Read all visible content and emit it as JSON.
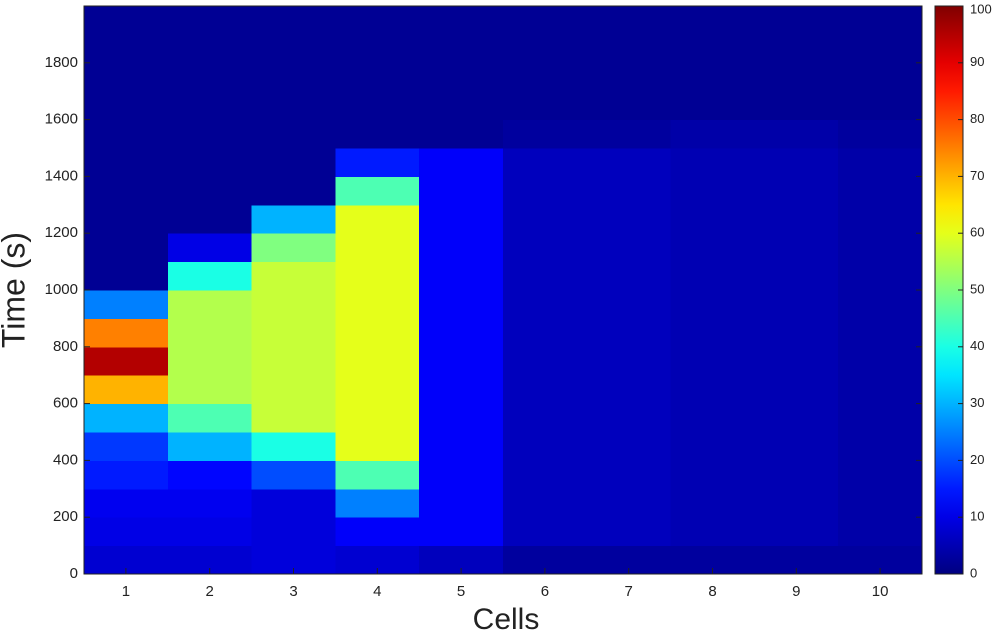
{
  "chart_data": {
    "type": "heatmap",
    "x_label": "Cells",
    "y_label": "Time (s)",
    "categories": [
      "1",
      "2",
      "3",
      "4",
      "5",
      "6",
      "7",
      "8",
      "9",
      "10"
    ],
    "y_bins": [
      0,
      100,
      200,
      300,
      400,
      500,
      600,
      700,
      800,
      900,
      1000,
      1100,
      1200,
      1300,
      1400,
      1500,
      1600,
      1700,
      1800,
      1900,
      2000
    ],
    "values": [
      [
        8,
        8,
        9,
        8,
        6,
        3,
        3,
        3,
        3,
        3
      ],
      [
        10,
        10,
        9,
        12,
        12,
        6,
        6,
        5,
        5,
        4
      ],
      [
        11,
        11,
        9,
        25,
        12,
        6,
        6,
        5,
        5,
        4
      ],
      [
        15,
        13,
        20,
        45,
        12,
        6,
        6,
        5,
        5,
        4
      ],
      [
        18,
        30,
        40,
        60,
        12,
        6,
        6,
        5,
        5,
        4
      ],
      [
        30,
        45,
        57,
        60,
        12,
        6,
        6,
        5,
        5,
        4
      ],
      [
        70,
        55,
        57,
        60,
        12,
        6,
        6,
        5,
        5,
        4
      ],
      [
        95,
        55,
        57,
        60,
        12,
        6,
        6,
        5,
        5,
        4
      ],
      [
        75,
        55,
        57,
        60,
        12,
        6,
        6,
        5,
        5,
        4
      ],
      [
        25,
        55,
        57,
        60,
        12,
        6,
        6,
        5,
        5,
        4
      ],
      [
        2,
        40,
        57,
        60,
        12,
        6,
        6,
        5,
        5,
        4
      ],
      [
        2,
        10,
        50,
        60,
        12,
        6,
        6,
        5,
        5,
        4
      ],
      [
        2,
        2,
        30,
        60,
        12,
        6,
        6,
        5,
        5,
        4
      ],
      [
        2,
        2,
        2,
        45,
        12,
        6,
        6,
        5,
        5,
        4
      ],
      [
        2,
        2,
        2,
        15,
        12,
        6,
        6,
        5,
        5,
        4
      ],
      [
        2,
        2,
        2,
        2,
        2,
        3,
        3,
        4,
        4,
        3
      ],
      [
        2,
        2,
        2,
        2,
        2,
        2,
        2,
        2,
        2,
        2
      ],
      [
        2,
        2,
        2,
        2,
        2,
        2,
        2,
        2,
        2,
        2
      ],
      [
        2,
        2,
        2,
        2,
        2,
        2,
        2,
        2,
        2,
        2
      ],
      [
        2,
        2,
        2,
        2,
        2,
        2,
        2,
        2,
        2,
        2
      ]
    ],
    "ylim": [
      0,
      2000
    ],
    "yticks": [
      0,
      200,
      400,
      600,
      800,
      1000,
      1200,
      1400,
      1600,
      1800
    ],
    "colormap": "jet",
    "colorbar": {
      "lim": [
        0,
        100
      ],
      "ticks": [
        0,
        10,
        20,
        30,
        40,
        50,
        60,
        70,
        80,
        90,
        100
      ]
    }
  }
}
